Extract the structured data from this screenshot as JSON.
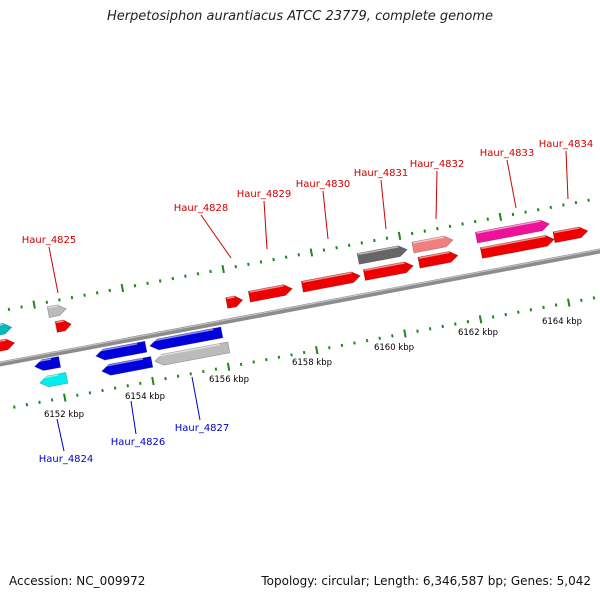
{
  "title": "Herpetosiphon aurantiacus ATCC 23779, complete genome",
  "footer": {
    "accession": "Accession: NC_009972",
    "topology": "Topology: circular; Length: 6,346,587 bp; Genes: 5,042"
  },
  "colors": {
    "forward_label": "#cc0000",
    "reverse_label": "#0000cc",
    "tick": "#1a8a1a",
    "backbone": "#8c8c8c"
  },
  "scale_labels": [
    "6152 kbp",
    "6154 kbp",
    "6156 kbp",
    "6158 kbp",
    "6160 kbp",
    "6162 kbp",
    "6164 kbp"
  ],
  "gene_labels": {
    "forward": [
      "Haur_4825",
      "Haur_4828",
      "Haur_4829",
      "Haur_4830",
      "Haur_4831",
      "Haur_4832",
      "Haur_4833",
      "Haur_4834"
    ],
    "reverse": [
      "Haur_4824",
      "Haur_4826",
      "Haur_4827"
    ]
  }
}
